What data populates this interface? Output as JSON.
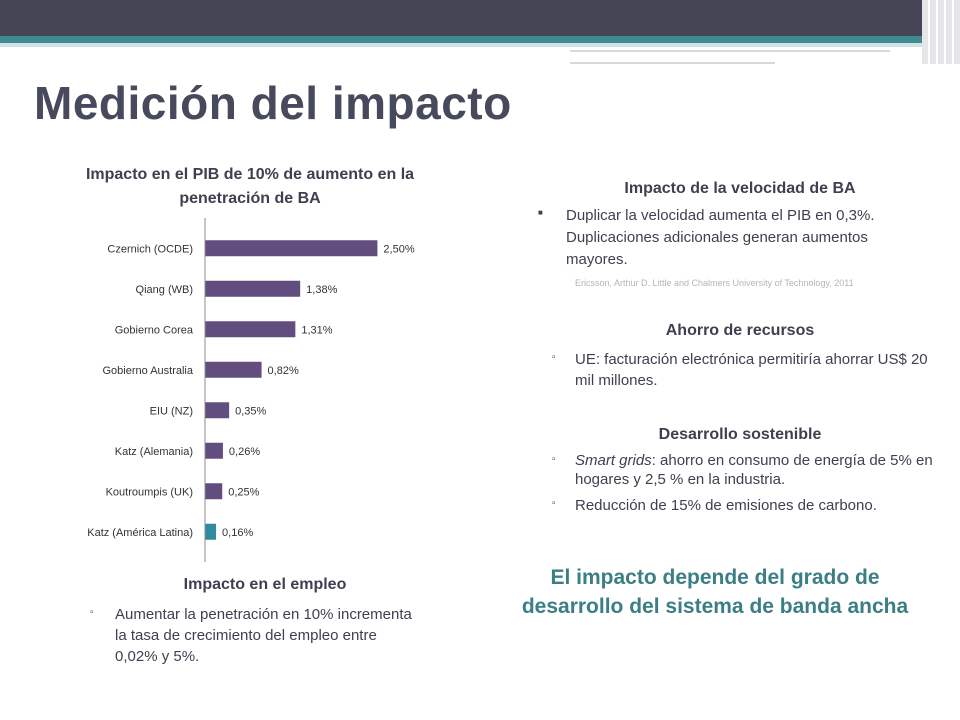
{
  "slide": {
    "title": "Medición del impacto",
    "conclusion": "El impacto depende del grado de desarrollo del sistema de banda ancha"
  },
  "empleo": {
    "heading": "Impacto en el empleo",
    "bullet": "Aumentar la penetración en 10% incrementa la tasa de crecimiento del empleo entre 0,02% y 5%."
  },
  "velocidad": {
    "heading": "Impacto de la velocidad de BA",
    "bullet": "Duplicar la velocidad aumenta el PIB en 0,3%. Duplicaciones adicionales generan aumentos mayores.",
    "source": "Ericsson, Arthur D. Little and Chalmers University of Technology, 2011"
  },
  "ahorro": {
    "heading": "Ahorro de recursos",
    "bullet": "UE: facturación electrónica permitiría ahorrar US$ 20 mil millones."
  },
  "desarrollo": {
    "heading": "Desarrollo sostenible",
    "bullet1_em": "Smart grids",
    "bullet1_rest": ": ahorro en consumo de energía de 5% en hogares y 2,5 % en la industria.",
    "bullet2": "Reducción de 15% de emisiones de carbono."
  },
  "colors": {
    "bar_default": "#624e7e",
    "bar_highlight": "#2f8b9d",
    "accent": "#3b7f85",
    "header_dark": "#464555"
  },
  "chart_data": {
    "type": "bar",
    "orientation": "horizontal",
    "title": "Impacto en el PIB de 10% de aumento en la penetración de BA",
    "categories": [
      "Czernich (OCDE)",
      "Qiang (WB)",
      "Gobierno Corea",
      "Gobierno Australia",
      "EIU (NZ)",
      "Katz (Alemania)",
      "Koutroumpis (UK)",
      "Katz (América Latina)"
    ],
    "values": [
      2.5,
      1.38,
      1.31,
      0.82,
      0.35,
      0.26,
      0.25,
      0.16
    ],
    "value_labels": [
      "2,50%",
      "1,38%",
      "1,31%",
      "0,82%",
      "0,35%",
      "0,26%",
      "0,25%",
      "0,16%"
    ],
    "highlight_category": "Katz (América Latina)",
    "xlim": [
      0,
      2.9
    ],
    "grid": false,
    "legend": "none"
  }
}
